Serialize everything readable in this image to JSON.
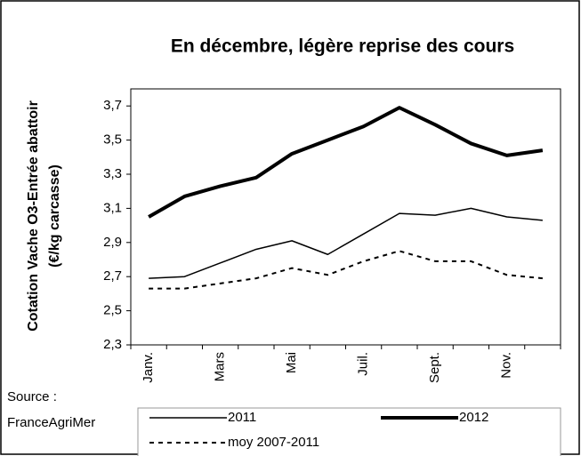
{
  "chart_data": {
    "type": "line",
    "title": "En décembre, légère reprise des cours",
    "y_label": [
      "Cotation Vache O3-Entrée abattoir",
      "(€/kg carcasse)"
    ],
    "source": [
      "Source :",
      "FranceAgriMer"
    ],
    "categories": [
      "Janv.",
      null,
      "Mars",
      null,
      "Mai",
      null,
      "Juil.",
      null,
      "Sept.",
      null,
      "Nov.",
      null
    ],
    "series": [
      {
        "name": "2011",
        "color": "#000000",
        "line_width": 1.5,
        "dash": false,
        "values": [
          2.69,
          2.7,
          2.78,
          2.86,
          2.91,
          2.83,
          2.95,
          3.07,
          3.06,
          3.1,
          3.05,
          3.03
        ]
      },
      {
        "name": "2012",
        "color": "#000000",
        "line_width": 4,
        "dash": false,
        "values": [
          3.05,
          3.17,
          3.23,
          3.28,
          3.42,
          3.5,
          3.58,
          3.69,
          3.59,
          3.48,
          3.41,
          3.44
        ]
      },
      {
        "name": "moy 2007-2011",
        "color": "#000000",
        "line_width": 2,
        "dash": true,
        "values": [
          2.63,
          2.63,
          2.66,
          2.69,
          2.75,
          2.71,
          2.79,
          2.85,
          2.79,
          2.79,
          2.71,
          2.69
        ]
      }
    ],
    "ylim": [
      2.3,
      3.8
    ],
    "yticks": [
      {
        "value": 2.3,
        "label": "2,3"
      },
      {
        "value": 2.5,
        "label": "2,5"
      },
      {
        "value": 2.7,
        "label": "2,7"
      },
      {
        "value": 2.9,
        "label": "2,9"
      },
      {
        "value": 3.1,
        "label": "3,1"
      },
      {
        "value": 3.3,
        "label": "3,3"
      },
      {
        "value": 3.5,
        "label": "3,5"
      },
      {
        "value": 3.7,
        "label": "3,7"
      }
    ],
    "grid": false
  }
}
